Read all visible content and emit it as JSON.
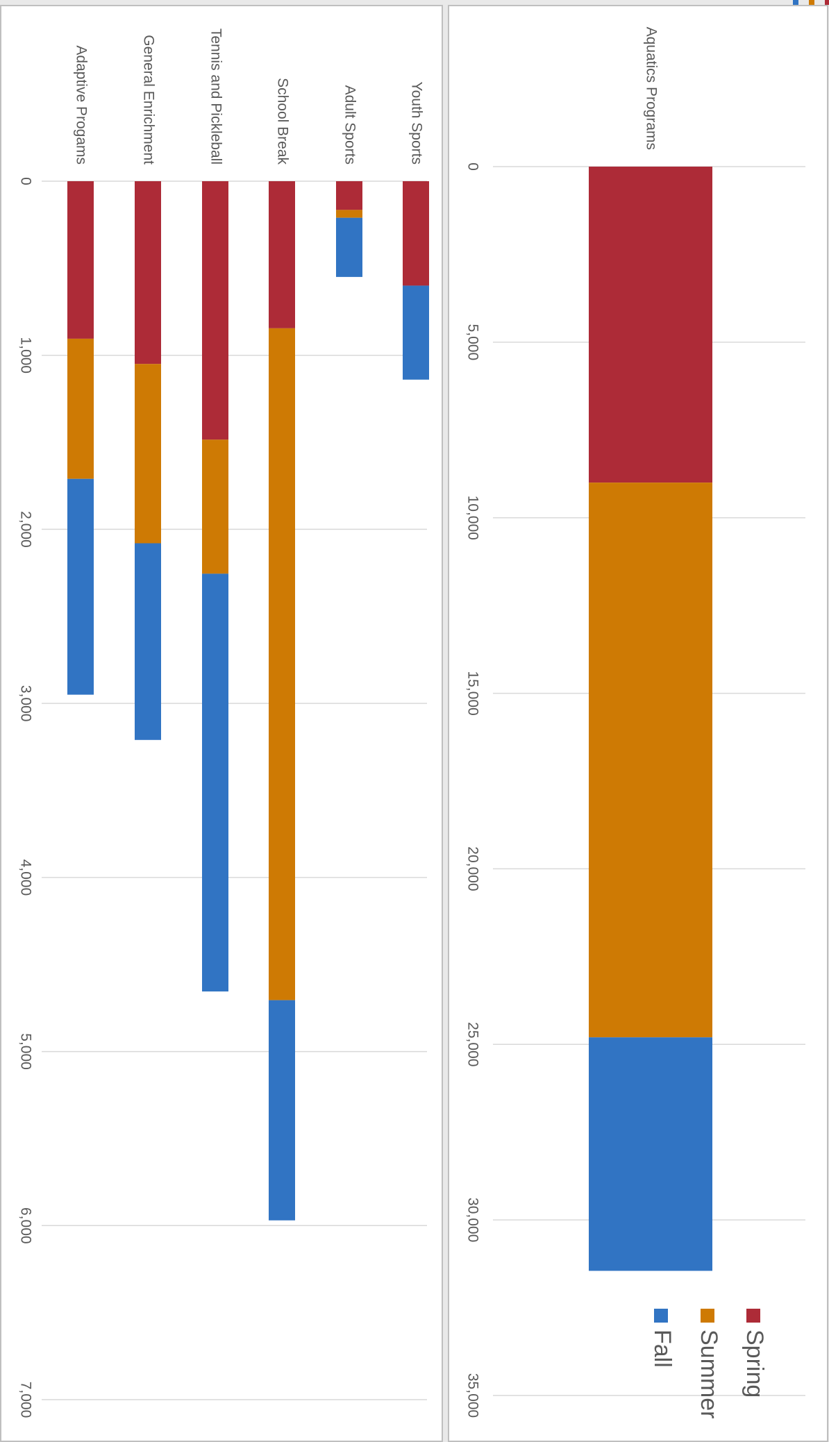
{
  "colors": {
    "spring": "#AD2B37",
    "summer": "#CE7A04",
    "fall": "#3174C3",
    "grid": "#D9D9D9",
    "text": "#595959",
    "panel_bg": "#FFFFFF",
    "panel_border": "#BFBFBF",
    "page_bg": "#E9E9E9"
  },
  "chart_data": [
    {
      "type": "bar",
      "orientation": "rotated-90-clockwise",
      "stacked": true,
      "categories": [
        "Adaptive Progams",
        "General Enrichment",
        "Tennis and Pickleball",
        "School Break",
        "Adult Sports",
        "Youth Sports"
      ],
      "series": [
        {
          "name": "Spring",
          "color": "#AD2B37",
          "values": [
            905,
            1050,
            1485,
            845,
            165,
            600
          ]
        },
        {
          "name": "Summer",
          "color": "#CE7A04",
          "values": [
            805,
            1030,
            770,
            3860,
            45,
            0
          ]
        },
        {
          "name": "Fall",
          "color": "#3174C3",
          "values": [
            1240,
            1130,
            2400,
            1265,
            340,
            540
          ]
        }
      ],
      "ylim": [
        0,
        7000
      ],
      "ticks": [
        "0",
        "1,000",
        "2,000",
        "3,000",
        "4,000",
        "5,000",
        "6,000",
        "7,000"
      ],
      "tick_values": [
        0,
        1000,
        2000,
        3000,
        4000,
        5000,
        6000,
        7000
      ],
      "grid": true,
      "legend": "none"
    },
    {
      "type": "bar",
      "orientation": "rotated-90-clockwise",
      "stacked": true,
      "categories": [
        "Aquatics Programs"
      ],
      "series": [
        {
          "name": "Spring",
          "color": "#AD2B37",
          "values": [
            9000
          ]
        },
        {
          "name": "Summer",
          "color": "#CE7A04",
          "values": [
            15800
          ]
        },
        {
          "name": "Fall",
          "color": "#3174C3",
          "values": [
            6650
          ]
        }
      ],
      "ylim": [
        0,
        35000
      ],
      "ticks": [
        "0",
        "5,000",
        "10,000",
        "15,000",
        "20,000",
        "25,000",
        "30,000",
        "35,000"
      ],
      "tick_values": [
        0,
        5000,
        10000,
        15000,
        20000,
        25000,
        30000,
        35000
      ],
      "grid": true,
      "legend": "bottom"
    }
  ],
  "legend": {
    "items": [
      {
        "label": "Spring",
        "color": "#AD2B37"
      },
      {
        "label": "Summer",
        "color": "#CE7A04"
      },
      {
        "label": "Fall",
        "color": "#3174C3"
      }
    ]
  }
}
